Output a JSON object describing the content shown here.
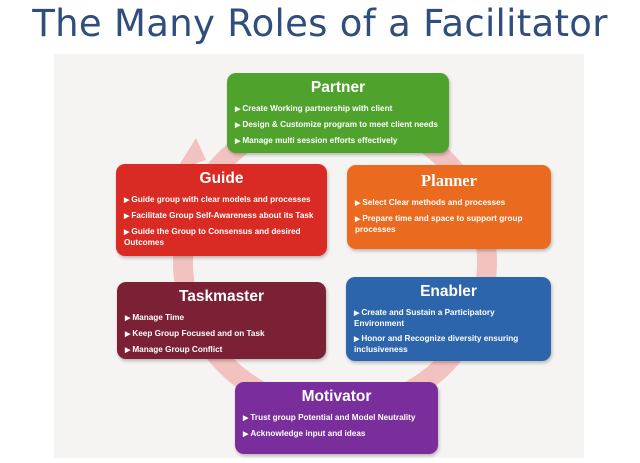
{
  "title": "The Many Roles of a Facilitator",
  "colors": {
    "title": "#2f4e7d",
    "panel_background": "#f6f4f2",
    "cycle_arrow": "#f2c2c0",
    "partner": "#4fa32d",
    "guide": "#d92a23",
    "planner": "#ea6a1f",
    "taskmaster": "#7b2035",
    "enabler": "#2d65ad",
    "motivator": "#7a2e9c"
  },
  "roles": {
    "partner": {
      "title": "Partner",
      "points": [
        "Create Working partnership with client",
        "Design & Customize program to meet client needs",
        "Manage multi session efforts effectively"
      ]
    },
    "guide": {
      "title": "Guide",
      "points": [
        "Guide group with clear models and processes",
        "Facilitate Group Self-Awareness about its Task",
        "Guide the Group to Consensus and desired Outcomes"
      ]
    },
    "planner": {
      "title": "Planner",
      "points": [
        "Select Clear methods and processes",
        "Prepare time and space to support group processes"
      ]
    },
    "taskmaster": {
      "title": "Taskmaster",
      "points": [
        "Manage Time",
        "Keep Group Focused and on Task",
        "Manage Group Conflict"
      ]
    },
    "enabler": {
      "title": "Enabler",
      "points": [
        "Create and Sustain a Participatory Environment",
        "Honor and Recognize diversity ensuring inclusiveness"
      ]
    },
    "motivator": {
      "title": "Motivator",
      "points": [
        "Trust group Potential and Model Neutrality",
        "Acknowledge input and ideas"
      ]
    }
  }
}
